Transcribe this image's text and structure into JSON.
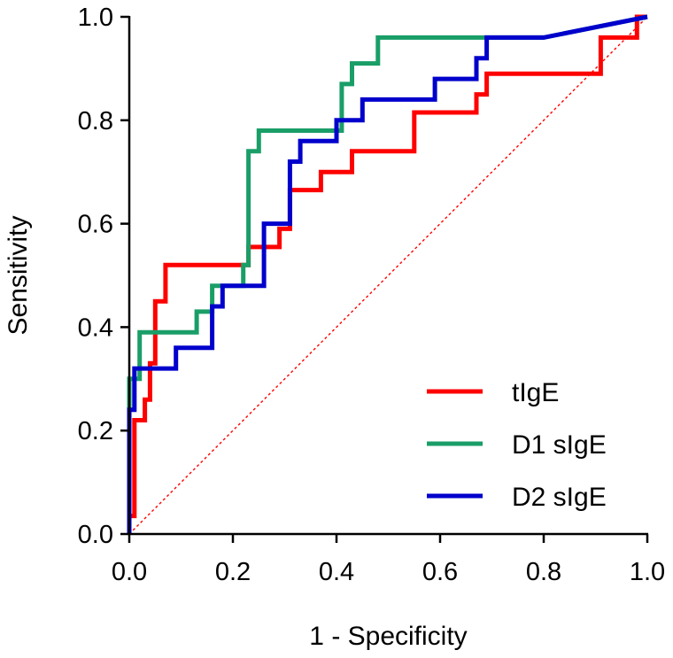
{
  "chart_data": {
    "type": "line",
    "title": "",
    "xlabel": "1 - Specificity",
    "ylabel": "Sensitivity",
    "xlim": [
      0,
      1
    ],
    "ylim": [
      0,
      1
    ],
    "xticks": [
      "0.0",
      "0.2",
      "0.4",
      "0.6",
      "0.8",
      "1.0"
    ],
    "yticks": [
      "0.0",
      "0.2",
      "0.4",
      "0.6",
      "0.8",
      "1.0"
    ],
    "grid": false,
    "legend_position": "bottom-right",
    "reference_line": {
      "name": "chance",
      "color": "#ff0000",
      "style": "dotted",
      "x": [
        0,
        1
      ],
      "y": [
        0,
        1
      ]
    },
    "series": [
      {
        "name": "tIgE",
        "color": "#ff0000",
        "x": [
          0,
          0,
          0.01,
          0.01,
          0.03,
          0.03,
          0.04,
          0.04,
          0.05,
          0.05,
          0.07,
          0.07,
          0.23,
          0.23,
          0.29,
          0.29,
          0.31,
          0.31,
          0.37,
          0.37,
          0.43,
          0.43,
          0.55,
          0.55,
          0.67,
          0.67,
          0.69,
          0.69,
          0.91,
          0.91,
          0.98,
          0.98,
          1.0
        ],
        "y": [
          0,
          0.035,
          0.035,
          0.22,
          0.22,
          0.26,
          0.26,
          0.33,
          0.33,
          0.45,
          0.45,
          0.52,
          0.52,
          0.555,
          0.555,
          0.59,
          0.59,
          0.665,
          0.665,
          0.7,
          0.7,
          0.74,
          0.74,
          0.815,
          0.815,
          0.85,
          0.85,
          0.89,
          0.89,
          0.96,
          0.96,
          1.0,
          1.0
        ]
      },
      {
        "name": "D1 sIgE",
        "color": "#1a9e68",
        "x": [
          0,
          0,
          0.02,
          0.02,
          0.13,
          0.13,
          0.16,
          0.16,
          0.22,
          0.22,
          0.23,
          0.23,
          0.25,
          0.25,
          0.41,
          0.41,
          0.43,
          0.43,
          0.48,
          0.48,
          0.68,
          0.8,
          1.0
        ],
        "y": [
          0,
          0.3,
          0.3,
          0.39,
          0.39,
          0.43,
          0.43,
          0.48,
          0.48,
          0.52,
          0.52,
          0.74,
          0.74,
          0.78,
          0.78,
          0.87,
          0.87,
          0.91,
          0.91,
          0.96,
          0.96,
          0.96,
          1.0
        ]
      },
      {
        "name": "D2 sIgE",
        "color": "#0000cc",
        "x": [
          0,
          0,
          0.01,
          0.01,
          0.03,
          0.03,
          0.09,
          0.09,
          0.16,
          0.16,
          0.18,
          0.18,
          0.26,
          0.26,
          0.31,
          0.31,
          0.33,
          0.33,
          0.4,
          0.4,
          0.45,
          0.45,
          0.59,
          0.59,
          0.67,
          0.67,
          0.69,
          0.69,
          0.8,
          1.0
        ],
        "y": [
          0,
          0.24,
          0.24,
          0.32,
          0.32,
          0.32,
          0.32,
          0.36,
          0.36,
          0.44,
          0.44,
          0.48,
          0.48,
          0.6,
          0.6,
          0.72,
          0.72,
          0.76,
          0.76,
          0.8,
          0.8,
          0.84,
          0.84,
          0.88,
          0.88,
          0.92,
          0.92,
          0.96,
          0.96,
          1.0
        ]
      }
    ]
  }
}
